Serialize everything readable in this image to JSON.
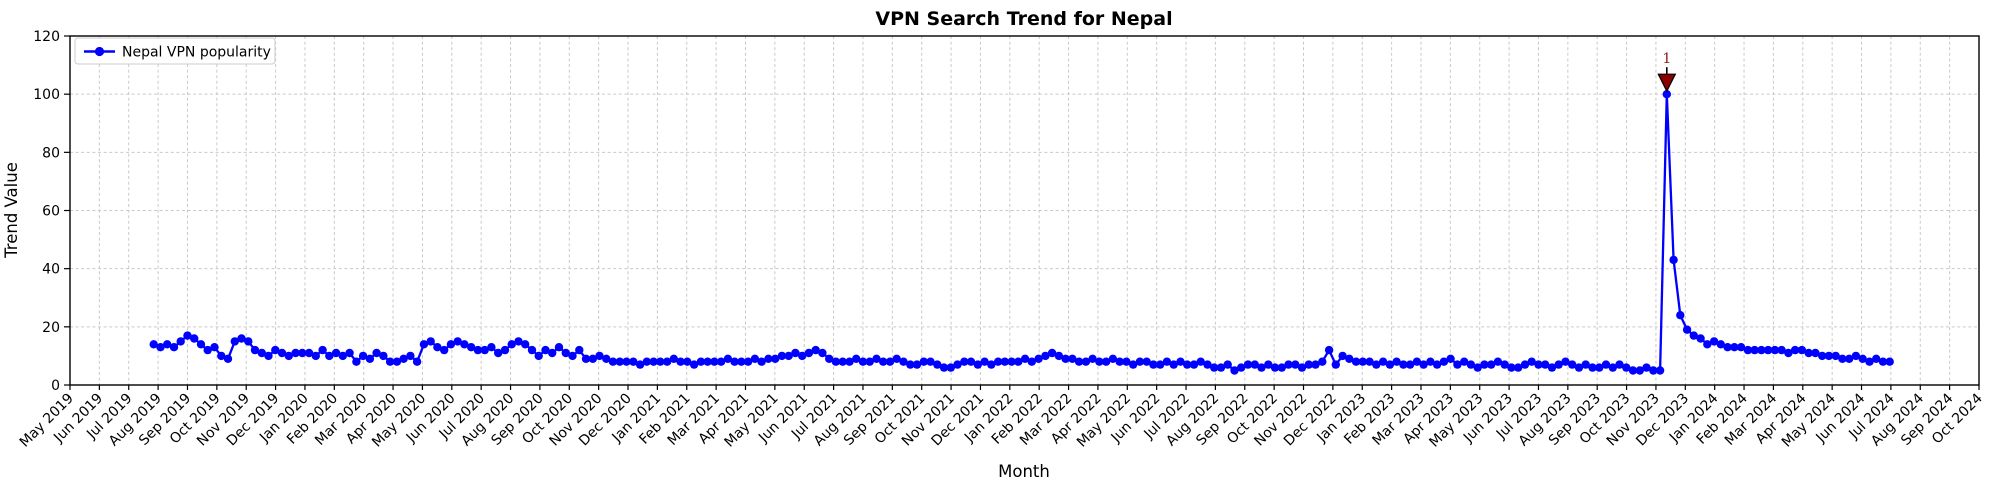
{
  "chart": {
    "title": "VPN Search Trend for Nepal",
    "xlabel": "Month",
    "ylabel": "Trend Value",
    "legend_label": "Nepal VPN popularity"
  },
  "chart_data": {
    "type": "line",
    "title": "VPN Search Trend for Nepal",
    "xlabel": "Month",
    "ylabel": "Trend Value",
    "ylim": [
      0,
      120
    ],
    "y_ticks": [
      0,
      20,
      40,
      60,
      80,
      100,
      120
    ],
    "grid": true,
    "grid_style": "dashed",
    "legend_position": "upper left",
    "x_tick_labels": [
      "May 2019",
      "Jun 2019",
      "Jul 2019",
      "Aug 2019",
      "Sep 2019",
      "Oct 2019",
      "Nov 2019",
      "Dec 2019",
      "Jan 2020",
      "Feb 2020",
      "Mar 2020",
      "Apr 2020",
      "May 2020",
      "Jun 2020",
      "Jul 2020",
      "Aug 2020",
      "Sep 2020",
      "Oct 2020",
      "Nov 2020",
      "Dec 2020",
      "Jan 2021",
      "Feb 2021",
      "Mar 2021",
      "Apr 2021",
      "May 2021",
      "Jun 2021",
      "Jul 2021",
      "Aug 2021",
      "Sep 2021",
      "Oct 2021",
      "Nov 2021",
      "Dec 2021",
      "Jan 2022",
      "Feb 2022",
      "Mar 2022",
      "Apr 2022",
      "May 2022",
      "Jun 2022",
      "Jul 2022",
      "Aug 2022",
      "Sep 2022",
      "Oct 2022",
      "Nov 2022",
      "Dec 2022",
      "Jan 2023",
      "Feb 2023",
      "Mar 2023",
      "Apr 2023",
      "May 2023",
      "Jun 2023",
      "Jul 2023",
      "Aug 2023",
      "Sep 2023",
      "Oct 2023",
      "Nov 2023",
      "Dec 2023",
      "Jan 2024",
      "Feb 2024",
      "Mar 2024",
      "Apr 2024",
      "May 2024",
      "Jun 2024",
      "Jul 2024",
      "Aug 2024",
      "Sep 2024",
      "Oct 2024"
    ],
    "series": [
      {
        "name": "Nepal VPN popularity",
        "color": "#0000ff",
        "marker": "circle",
        "cadence": "weekly",
        "start_month_offset": 2.85,
        "week_step_months": 0.23,
        "values": [
          14,
          13,
          14,
          13,
          15,
          17,
          16,
          14,
          12,
          13,
          10,
          9,
          15,
          16,
          15,
          12,
          11,
          10,
          12,
          11,
          10,
          11,
          11,
          11,
          10,
          12,
          10,
          11,
          10,
          11,
          8,
          10,
          9,
          11,
          10,
          8,
          8,
          9,
          10,
          8,
          14,
          15,
          13,
          12,
          14,
          15,
          14,
          13,
          12,
          12,
          13,
          11,
          12,
          14,
          15,
          14,
          12,
          10,
          12,
          11,
          13,
          11,
          10,
          12,
          9,
          9,
          10,
          9,
          8,
          8,
          8,
          8,
          7,
          8,
          8,
          8,
          8,
          9,
          8,
          8,
          7,
          8,
          8,
          8,
          8,
          9,
          8,
          8,
          8,
          9,
          8,
          9,
          9,
          10,
          10,
          11,
          10,
          11,
          12,
          11,
          9,
          8,
          8,
          8,
          9,
          8,
          8,
          9,
          8,
          8,
          9,
          8,
          7,
          7,
          8,
          8,
          7,
          6,
          6,
          7,
          8,
          8,
          7,
          8,
          7,
          8,
          8,
          8,
          8,
          9,
          8,
          9,
          10,
          11,
          10,
          9,
          9,
          8,
          8,
          9,
          8,
          8,
          9,
          8,
          8,
          7,
          8,
          8,
          7,
          7,
          8,
          7,
          8,
          7,
          7,
          8,
          7,
          6,
          6,
          7,
          5,
          6,
          7,
          7,
          6,
          7,
          6,
          6,
          7,
          7,
          6,
          7,
          7,
          8,
          12,
          7,
          10,
          9,
          8,
          8,
          8,
          7,
          8,
          7,
          8,
          7,
          7,
          8,
          7,
          8,
          7,
          8,
          9,
          7,
          8,
          7,
          6,
          7,
          7,
          8,
          7,
          6,
          6,
          7,
          8,
          7,
          7,
          6,
          7,
          8,
          7,
          6,
          7,
          6,
          6,
          7,
          6,
          7,
          6,
          5,
          5,
          6,
          5,
          5,
          100,
          43,
          24,
          19,
          17,
          16,
          14,
          15,
          14,
          13,
          13,
          13,
          12,
          12,
          12,
          12,
          12,
          12,
          11,
          12,
          12,
          11,
          11,
          10,
          10,
          10,
          9,
          9,
          10,
          9,
          8,
          9,
          8,
          8
        ]
      }
    ],
    "annotation": {
      "label": "1",
      "series_point_index": 224,
      "value": 100,
      "marker": "down-triangle",
      "fill_color": "#8b0000",
      "edge_color": "#000000",
      "text_color": "#8b1a1a"
    }
  }
}
